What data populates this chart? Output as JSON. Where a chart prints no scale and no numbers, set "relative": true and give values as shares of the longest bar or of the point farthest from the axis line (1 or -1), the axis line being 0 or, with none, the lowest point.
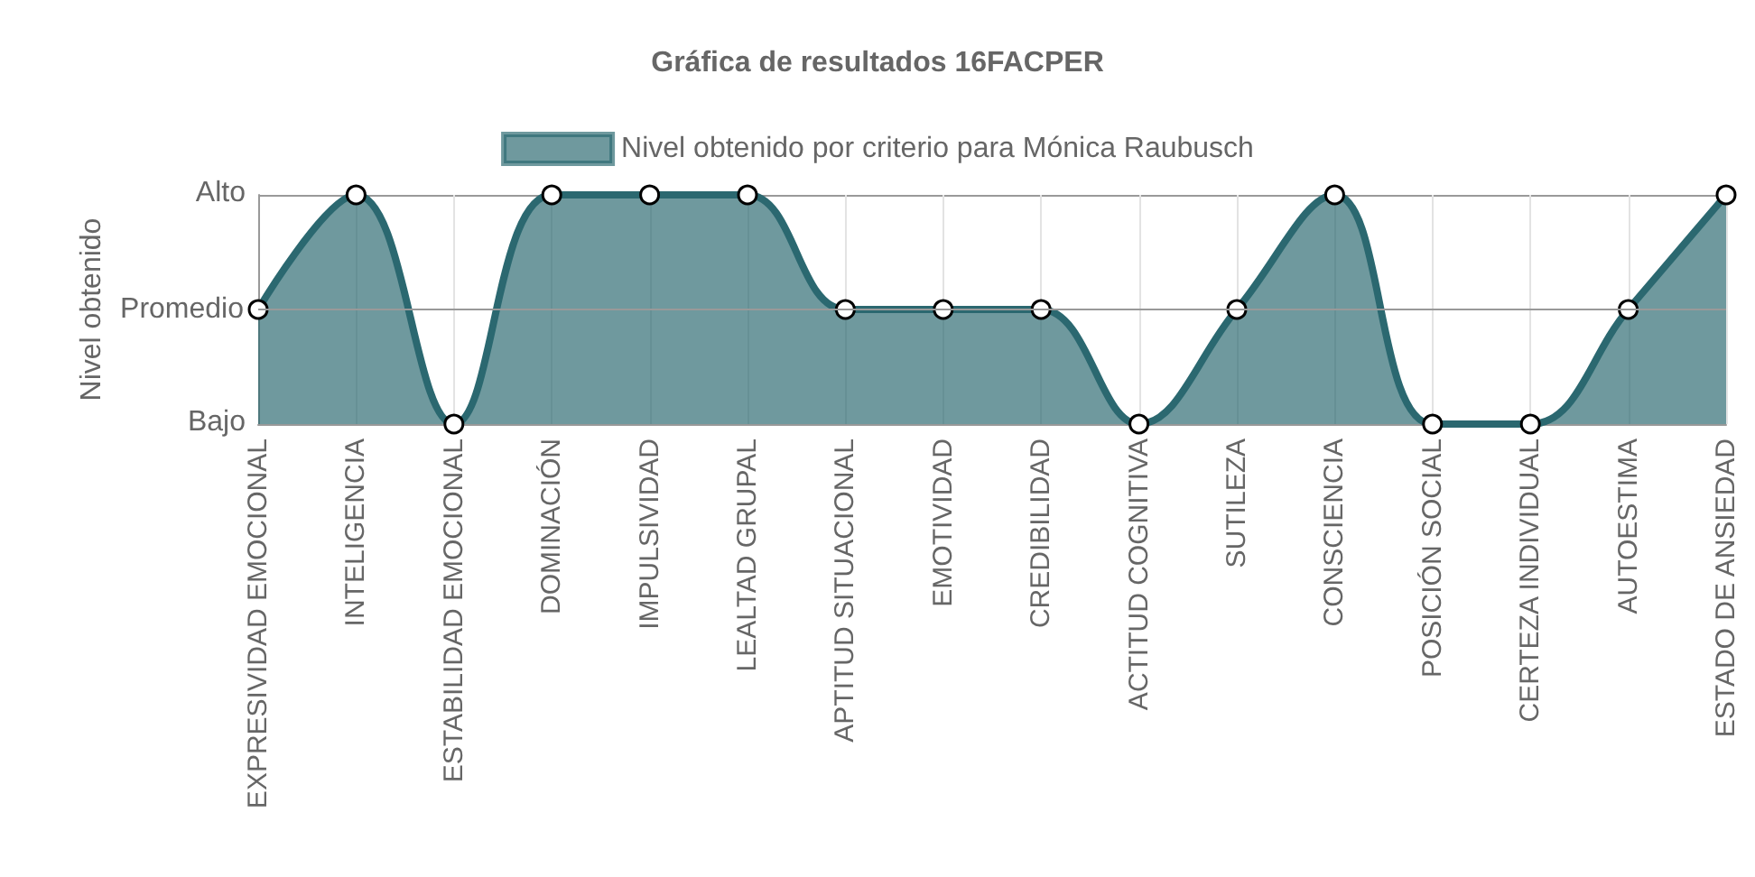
{
  "chart_data": {
    "type": "area",
    "title": "Gráfica de resultados 16FACPER",
    "ylabel": "Nivel obtenido",
    "categories": [
      "EXPRESIVIDAD EMOCIONAL",
      "INTELIGENCIA",
      "ESTABILIDAD EMOCIONAL",
      "DOMINACIÓN",
      "IMPULSIVIDAD",
      "LEALTAD GRUPAL",
      "APTITUD SITUACIONAL",
      "EMOTIVIDAD",
      "CREDIBILIDAD",
      "ACTITUD COGNITIVA",
      "SUTILEZA",
      "CONSCIENCIA",
      "POSICIÓN SOCIAL",
      "CERTEZA INDIVIDUAL",
      "AUTOESTIMA",
      "ESTADO DE ANSIEDAD"
    ],
    "series": [
      {
        "name": "Nivel obtenido por criterio para Mónica Raubusch",
        "color": "#2b6870",
        "values": [
          0.5,
          1,
          0,
          1,
          1,
          1,
          0.5,
          0.5,
          0.5,
          0,
          0.5,
          1,
          0,
          0,
          0.5,
          1
        ]
      }
    ],
    "relative": true,
    "annotations": [
      "Bajo",
      "Alto"
    ],
    "ref_lines": [
      {
        "axis": "y",
        "value": 0.5,
        "label": "Promedio",
        "color": "#999999"
      }
    ],
    "grid": "x",
    "legend": "top",
    "marker": "circle",
    "line_style": "solid"
  }
}
